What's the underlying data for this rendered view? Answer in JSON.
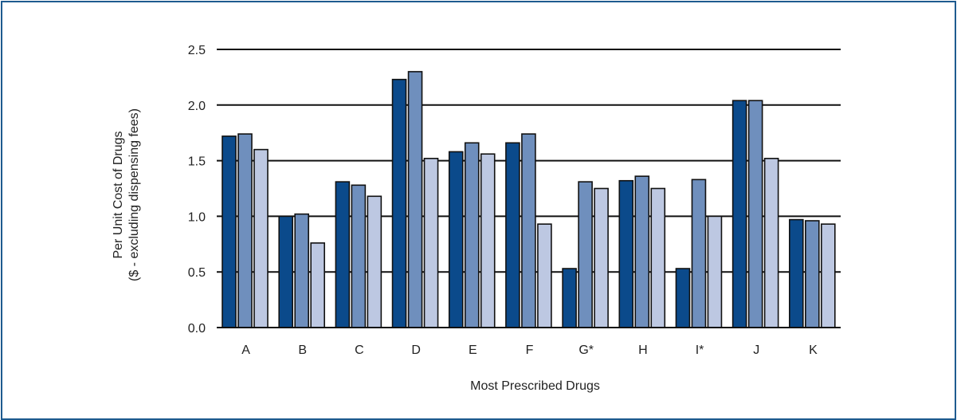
{
  "chart_data": {
    "type": "bar",
    "title": "",
    "xlabel": "Most Prescribed Drugs",
    "ylabel_lines": [
      "Per Unit Cost of Drugs",
      "($ - excluding dispensing fees)"
    ],
    "categories": [
      "A",
      "B",
      "C",
      "D",
      "E",
      "F",
      "G*",
      "H",
      "I*",
      "J",
      "K"
    ],
    "y_ticks": [
      "0.0",
      "0.5",
      "1.0",
      "1.5",
      "2.0",
      "2.5"
    ],
    "ylim": [
      0,
      2.5
    ],
    "grid": "horizontal",
    "series": [
      {
        "color": "#0b4a8b",
        "values": [
          1.72,
          1.0,
          1.31,
          2.23,
          1.58,
          1.66,
          0.53,
          1.32,
          0.53,
          2.04,
          0.97
        ]
      },
      {
        "color": "#6f8fbd",
        "values": [
          1.74,
          1.02,
          1.28,
          2.3,
          1.66,
          1.74,
          1.31,
          1.36,
          1.33,
          2.04,
          0.96
        ]
      },
      {
        "color": "#bdc8e2",
        "values": [
          1.6,
          0.76,
          1.18,
          1.52,
          1.56,
          0.93,
          1.25,
          1.25,
          1.0,
          1.52,
          0.93
        ]
      }
    ]
  }
}
